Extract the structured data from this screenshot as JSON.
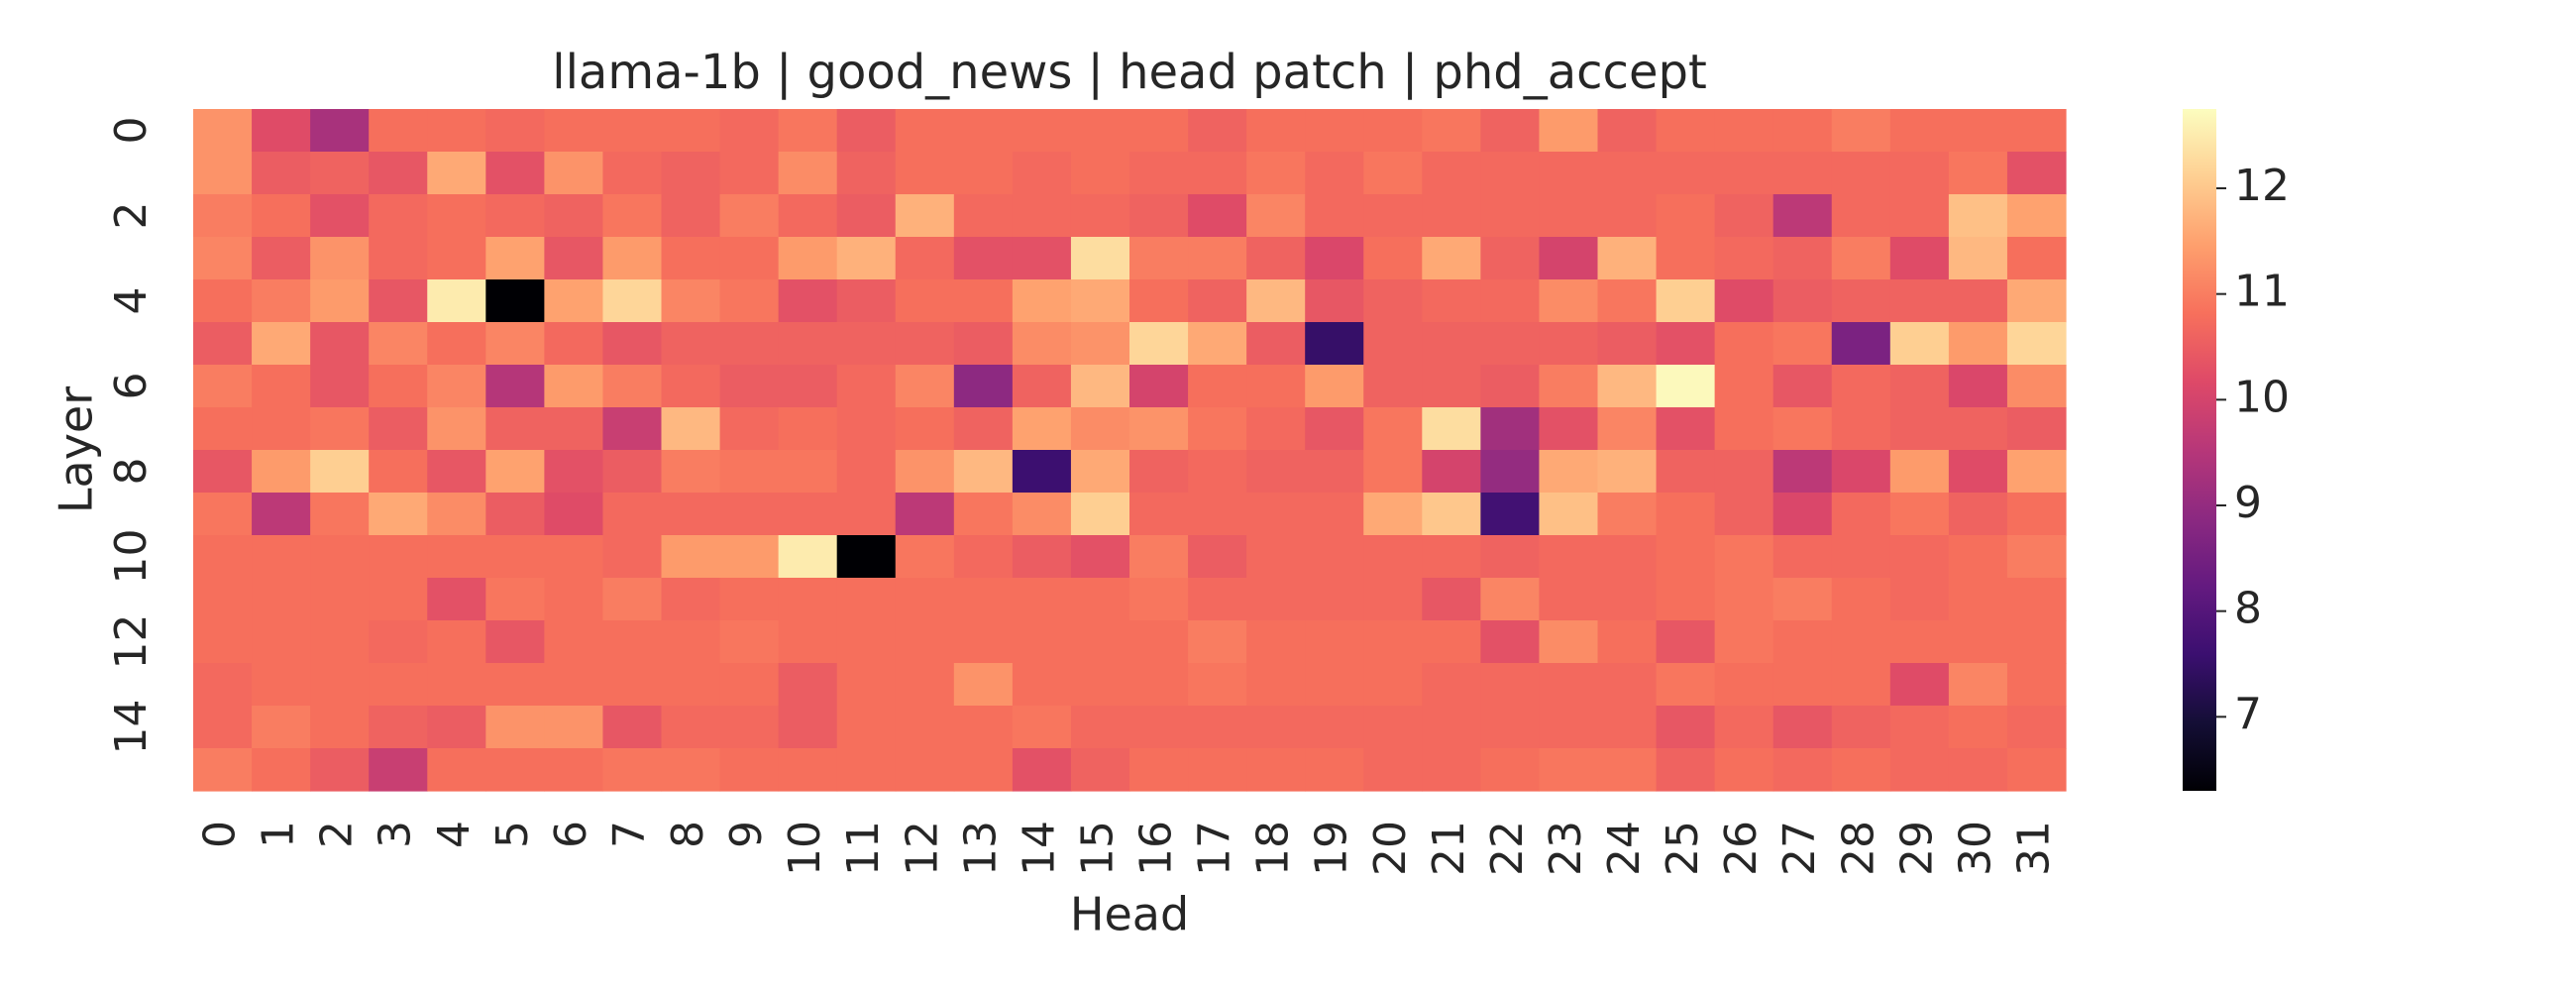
{
  "chart_data": {
    "type": "heatmap",
    "title": "llama-1b | good_news | head patch | phd_accept",
    "xlabel": "Head",
    "ylabel": "Layer",
    "colormap": "magma",
    "x": [
      "0",
      "1",
      "2",
      "3",
      "4",
      "5",
      "6",
      "7",
      "8",
      "9",
      "10",
      "11",
      "12",
      "13",
      "14",
      "15",
      "16",
      "17",
      "18",
      "19",
      "20",
      "21",
      "22",
      "23",
      "24",
      "25",
      "26",
      "27",
      "28",
      "29",
      "30",
      "31"
    ],
    "y": [
      "0",
      null,
      "2",
      null,
      "4",
      null,
      "6",
      null,
      "8",
      null,
      "10",
      null,
      "12",
      null,
      "14",
      null
    ],
    "clim": [
      6.3,
      12.75
    ],
    "cticks": [
      7,
      8,
      9,
      10,
      11,
      12
    ],
    "values": [
      [
        11.3,
        10.2,
        9.3,
        10.8,
        10.8,
        10.7,
        10.8,
        10.8,
        10.8,
        10.7,
        10.9,
        10.5,
        10.8,
        10.8,
        10.8,
        10.8,
        10.8,
        10.6,
        10.8,
        10.8,
        10.8,
        10.9,
        10.6,
        11.4,
        10.6,
        10.8,
        10.8,
        10.8,
        11.0,
        10.8,
        10.8,
        10.8
      ],
      [
        11.3,
        10.5,
        10.6,
        10.4,
        11.6,
        10.3,
        11.3,
        10.7,
        10.6,
        10.7,
        11.2,
        10.6,
        10.8,
        10.8,
        10.7,
        10.8,
        10.7,
        10.7,
        10.9,
        10.7,
        10.9,
        10.7,
        10.7,
        10.7,
        10.7,
        10.7,
        10.7,
        10.7,
        10.7,
        10.7,
        10.9,
        10.3
      ],
      [
        11.0,
        10.8,
        10.3,
        10.7,
        10.8,
        10.7,
        10.6,
        10.9,
        10.6,
        11.0,
        10.7,
        10.5,
        11.7,
        10.7,
        10.7,
        10.7,
        10.6,
        10.2,
        11.1,
        10.7,
        10.7,
        10.7,
        10.7,
        10.7,
        10.7,
        10.8,
        10.6,
        9.6,
        10.7,
        10.7,
        11.9,
        11.5
      ],
      [
        11.1,
        10.5,
        11.3,
        10.7,
        10.8,
        11.5,
        10.4,
        11.4,
        10.8,
        10.8,
        11.4,
        11.7,
        10.7,
        10.3,
        10.3,
        12.3,
        11.0,
        11.0,
        10.6,
        10.1,
        10.8,
        11.6,
        10.6,
        10.0,
        11.7,
        10.8,
        10.7,
        10.6,
        11.0,
        10.2,
        11.8,
        10.8
      ],
      [
        10.8,
        11.0,
        11.4,
        10.4,
        12.5,
        6.3,
        11.5,
        12.2,
        11.1,
        10.9,
        10.3,
        10.5,
        10.8,
        10.8,
        11.5,
        11.6,
        10.8,
        10.6,
        11.8,
        10.4,
        10.6,
        10.7,
        10.7,
        11.2,
        10.9,
        12.1,
        10.2,
        10.5,
        10.6,
        10.6,
        10.6,
        11.6
      ],
      [
        10.5,
        11.6,
        10.4,
        11.1,
        10.8,
        11.1,
        10.7,
        10.4,
        10.6,
        10.6,
        10.6,
        10.6,
        10.6,
        10.5,
        11.2,
        11.3,
        12.2,
        11.6,
        10.5,
        7.5,
        10.6,
        10.6,
        10.6,
        10.6,
        10.5,
        10.3,
        10.8,
        10.9,
        8.6,
        12.1,
        11.4,
        12.2
      ],
      [
        11.0,
        10.8,
        10.4,
        10.8,
        11.1,
        9.5,
        11.4,
        11.0,
        10.7,
        10.5,
        10.5,
        10.7,
        11.1,
        8.9,
        10.6,
        11.8,
        10.0,
        10.8,
        10.8,
        11.4,
        10.6,
        10.6,
        10.5,
        11.0,
        11.8,
        12.7,
        10.8,
        10.4,
        10.7,
        10.6,
        10.1,
        11.2
      ],
      [
        10.8,
        10.8,
        10.9,
        10.5,
        11.3,
        10.6,
        10.6,
        9.8,
        11.8,
        10.7,
        10.8,
        10.7,
        10.8,
        10.6,
        11.5,
        11.2,
        11.3,
        10.9,
        10.7,
        10.4,
        10.9,
        12.3,
        9.2,
        10.3,
        11.1,
        10.3,
        10.8,
        10.9,
        10.7,
        10.6,
        10.6,
        10.5
      ],
      [
        10.4,
        11.4,
        12.1,
        10.8,
        10.4,
        11.5,
        10.3,
        10.5,
        11.0,
        10.9,
        10.9,
        10.7,
        11.3,
        11.8,
        7.6,
        11.6,
        10.6,
        10.7,
        10.6,
        10.6,
        10.9,
        10.0,
        9.0,
        11.6,
        11.7,
        10.6,
        10.6,
        9.6,
        10.1,
        11.4,
        10.2,
        11.5
      ],
      [
        10.9,
        9.6,
        10.9,
        11.6,
        11.2,
        10.5,
        10.2,
        10.7,
        10.7,
        10.7,
        10.7,
        10.7,
        9.6,
        10.9,
        11.2,
        12.1,
        10.7,
        10.7,
        10.7,
        10.7,
        11.6,
        12.0,
        7.7,
        11.9,
        11.0,
        10.8,
        10.6,
        10.1,
        10.7,
        10.9,
        10.6,
        10.8
      ],
      [
        10.8,
        10.8,
        10.8,
        10.8,
        10.8,
        10.8,
        10.8,
        10.7,
        11.4,
        11.4,
        12.5,
        6.3,
        10.9,
        10.7,
        10.5,
        10.3,
        11.0,
        10.5,
        10.7,
        10.7,
        10.7,
        10.7,
        10.6,
        10.7,
        10.7,
        10.8,
        10.9,
        10.7,
        10.7,
        10.7,
        10.8,
        11.0
      ],
      [
        10.8,
        10.8,
        10.8,
        10.8,
        10.3,
        10.9,
        10.8,
        11.0,
        10.7,
        10.8,
        10.8,
        10.8,
        10.8,
        10.8,
        10.8,
        10.8,
        10.9,
        10.7,
        10.7,
        10.7,
        10.7,
        10.4,
        11.1,
        10.7,
        10.7,
        10.8,
        10.9,
        11.0,
        10.8,
        10.7,
        10.8,
        10.8
      ],
      [
        10.8,
        10.8,
        10.8,
        10.7,
        10.8,
        10.4,
        10.8,
        10.8,
        10.8,
        10.9,
        10.8,
        10.8,
        10.8,
        10.8,
        10.8,
        10.8,
        10.8,
        11.0,
        10.8,
        10.8,
        10.8,
        10.8,
        10.3,
        11.2,
        10.8,
        10.4,
        10.9,
        10.8,
        10.8,
        10.8,
        10.8,
        10.8
      ],
      [
        10.7,
        10.8,
        10.8,
        10.8,
        10.8,
        10.8,
        10.8,
        10.8,
        10.8,
        10.8,
        10.5,
        10.8,
        10.8,
        11.3,
        10.8,
        10.8,
        10.8,
        10.9,
        10.8,
        10.8,
        10.8,
        10.7,
        10.7,
        10.7,
        10.7,
        10.9,
        10.8,
        10.8,
        10.8,
        10.2,
        11.1,
        10.8
      ],
      [
        10.7,
        11.0,
        10.8,
        10.6,
        10.5,
        11.3,
        11.3,
        10.4,
        10.7,
        10.7,
        10.5,
        10.8,
        10.8,
        10.8,
        10.9,
        10.7,
        10.7,
        10.7,
        10.7,
        10.7,
        10.7,
        10.7,
        10.7,
        10.7,
        10.7,
        10.4,
        10.7,
        10.4,
        10.6,
        10.7,
        10.8,
        10.7
      ],
      [
        11.0,
        10.8,
        10.5,
        9.8,
        10.8,
        10.8,
        10.8,
        10.9,
        10.9,
        10.8,
        10.8,
        10.8,
        10.8,
        10.8,
        10.3,
        10.6,
        10.8,
        10.8,
        10.8,
        10.8,
        10.7,
        10.7,
        10.8,
        10.9,
        10.9,
        10.6,
        10.8,
        10.7,
        10.8,
        10.7,
        10.7,
        10.8
      ]
    ]
  }
}
